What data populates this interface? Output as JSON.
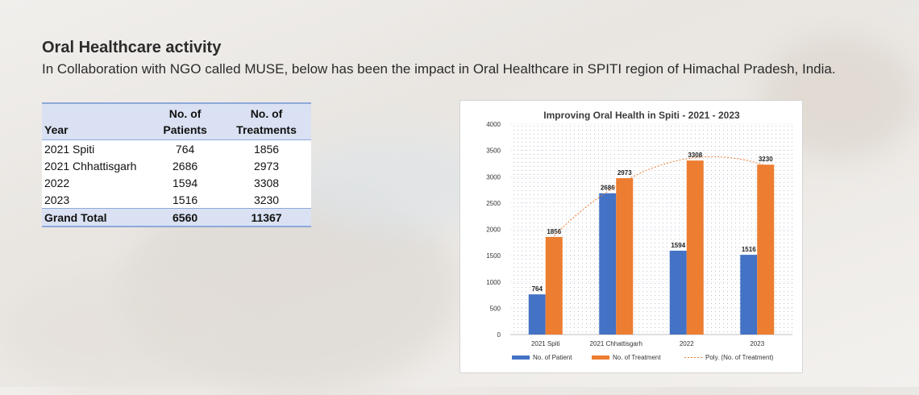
{
  "heading": "Oral Healthcare activity",
  "subheading": "In Collaboration with NGO called MUSE, below has been the impact in Oral Healthcare in SPITI region of Himachal Pradesh, India.",
  "table": {
    "headers": [
      {
        "line1": "",
        "line2": "Year"
      },
      {
        "line1": "No. of",
        "line2": "Patients"
      },
      {
        "line1": "No. of",
        "line2": "Treatments"
      }
    ],
    "rows": [
      {
        "year": "2021 Spiti",
        "patients": "764",
        "treatments": "1856"
      },
      {
        "year": "2021 Chhattisgarh",
        "patients": "2686",
        "treatments": "2973"
      },
      {
        "year": "2022",
        "patients": "1594",
        "treatments": "3308"
      },
      {
        "year": "2023",
        "patients": "1516",
        "treatments": "3230"
      }
    ],
    "total": {
      "year": "Grand Total",
      "patients": "6560",
      "treatments": "11367"
    },
    "colors": {
      "header_bg": "#d9e1f2",
      "border": "#8ea9db"
    }
  },
  "chart_data": {
    "type": "bar",
    "title": "Improving Oral Health in Spiti - 2021 - 2023",
    "categories": [
      "2021 Spiti",
      "2021 Chhattisgarh",
      "2022",
      "2023"
    ],
    "series": [
      {
        "name": "No. of Patient",
        "values": [
          764,
          2686,
          1594,
          1516
        ],
        "color": "#4472c4"
      },
      {
        "name": "No. of Treatment",
        "values": [
          1856,
          2973,
          3308,
          3230
        ],
        "color": "#ed7d31"
      }
    ],
    "trendline": {
      "name": "Poly. (No. of Treatment)",
      "of_series": "No. of Treatment",
      "kind": "polynomial",
      "style": "dotted",
      "color": "#ed7d31"
    },
    "ylim": [
      0,
      4000
    ],
    "yticks": [
      0,
      500,
      1000,
      1500,
      2000,
      2500,
      3000,
      3500,
      4000
    ],
    "grid": true,
    "legend": "bottom",
    "xlabel": "",
    "ylabel": ""
  }
}
